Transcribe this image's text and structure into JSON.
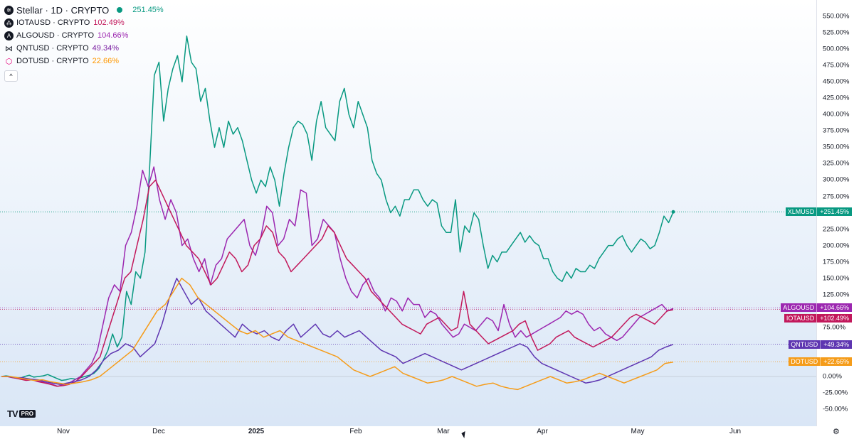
{
  "legend": {
    "main": {
      "symbol": "Stellar · 1D · CRYPTO",
      "change": "251.45%",
      "color": "#089981"
    },
    "compare": [
      {
        "symbol": "IOTAUSD · CRYPTO",
        "change": "102.49%",
        "color": "#c2185b"
      },
      {
        "symbol": "ALGOUSD · CRYPTO",
        "change": "104.66%",
        "color": "#9c27b0"
      },
      {
        "symbol": "QNTUSD · CRYPTO",
        "change": "49.34%",
        "color": "#7b1fa2"
      },
      {
        "symbol": "DOTUSD · CRYPTO",
        "change": "22.66%",
        "color": "#ff9800"
      }
    ],
    "collapse": "^"
  },
  "price_axis": {
    "ticks": [
      "550.00%",
      "525.00%",
      "500.00%",
      "475.00%",
      "450.00%",
      "425.00%",
      "400.00%",
      "375.00%",
      "350.00%",
      "325.00%",
      "300.00%",
      "275.00%",
      "250.00%",
      "225.00%",
      "200.00%",
      "175.00%",
      "150.00%",
      "125.00%",
      "75.00%",
      "0.00%",
      "-25.00%",
      "-50.00%"
    ],
    "tags": [
      {
        "symbol": "XLMUSD",
        "value": "+251.45%",
        "color": "#089981"
      },
      {
        "symbol": "ALGOUSD",
        "value": "+104.66%",
        "color": "#9c27b0"
      },
      {
        "symbol": "IOTAUSD",
        "value": "+102.49%",
        "color": "#c2185b"
      },
      {
        "symbol": "QNTUSD",
        "value": "+49.34%",
        "color": "#5e35b1"
      },
      {
        "symbol": "DOTUSD",
        "value": "+22.66%",
        "color": "#f59c1a"
      }
    ]
  },
  "time_axis": {
    "labels": [
      "Nov",
      "Dec",
      "2025",
      "Feb",
      "Mar",
      "Apr",
      "May",
      "Jun"
    ]
  },
  "branding": {
    "logo": "TV",
    "pro": "PRO"
  },
  "chart_data": {
    "type": "line",
    "title": "Stellar · 1D · CRYPTO",
    "ylabel": "",
    "ylim": [
      -58,
      550
    ],
    "x_labels": [
      "Nov",
      "Dec",
      "2025",
      "Feb",
      "Mar",
      "Apr",
      "May",
      "Jun"
    ],
    "series": [
      {
        "name": "XLMUSD",
        "color": "#089981",
        "last": 251.45,
        "values": [
          0,
          1,
          0,
          -2,
          -3,
          0,
          2,
          -1,
          0,
          1,
          3,
          0,
          -3,
          -6,
          -5,
          -3,
          -4,
          -2,
          0,
          2,
          5,
          12,
          25,
          40,
          65,
          45,
          60,
          130,
          110,
          160,
          150,
          190,
          320,
          460,
          480,
          390,
          440,
          470,
          490,
          450,
          520,
          480,
          470,
          420,
          440,
          390,
          350,
          380,
          350,
          390,
          370,
          380,
          360,
          330,
          300,
          280,
          300,
          290,
          320,
          300,
          260,
          310,
          350,
          380,
          390,
          385,
          370,
          330,
          390,
          420,
          380,
          370,
          360,
          420,
          440,
          400,
          380,
          420,
          400,
          380,
          330,
          310,
          300,
          270,
          250,
          260,
          245,
          270,
          270,
          285,
          285,
          270,
          260,
          270,
          265,
          230,
          220,
          220,
          270,
          190,
          230,
          220,
          250,
          240,
          200,
          165,
          185,
          175,
          190,
          190,
          200,
          210,
          220,
          205,
          215,
          205,
          200,
          180,
          180,
          160,
          150,
          145,
          160,
          150,
          165,
          160,
          160,
          170,
          165,
          180,
          190,
          200,
          200,
          210,
          215,
          200,
          190,
          200,
          210,
          205,
          195,
          200,
          220,
          245,
          235,
          251
        ]
      },
      {
        "name": "ALGOUSD",
        "color": "#9c27b0",
        "last": 104.66,
        "values": [
          0,
          0,
          -2,
          -3,
          -5,
          -4,
          -6,
          -8,
          -10,
          -12,
          -15,
          -12,
          -10,
          -5,
          0,
          10,
          20,
          40,
          80,
          120,
          140,
          130,
          200,
          220,
          260,
          315,
          290,
          320,
          270,
          240,
          270,
          250,
          200,
          210,
          180,
          160,
          180,
          140,
          170,
          180,
          210,
          220,
          230,
          240,
          200,
          185,
          215,
          260,
          250,
          200,
          210,
          240,
          230,
          285,
          280,
          200,
          210,
          240,
          230,
          220,
          180,
          150,
          130,
          120,
          140,
          150,
          130,
          120,
          100,
          120,
          115,
          100,
          120,
          110,
          110,
          90,
          100,
          95,
          80,
          70,
          60,
          65,
          80,
          75,
          70,
          80,
          90,
          85,
          70,
          110,
          80,
          60,
          70,
          60,
          65,
          70,
          75,
          80,
          85,
          90,
          100,
          95,
          100,
          95,
          80,
          70,
          75,
          65,
          60,
          55,
          60,
          70,
          80,
          90,
          95,
          100,
          105,
          110,
          100,
          104
        ]
      },
      {
        "name": "IOTAUSD",
        "color": "#c2185b",
        "last": 102.49,
        "values": [
          0,
          0,
          -2,
          -4,
          -6,
          -5,
          -8,
          -10,
          -12,
          -15,
          -14,
          -12,
          -8,
          0,
          10,
          20,
          30,
          60,
          90,
          120,
          150,
          160,
          200,
          240,
          290,
          300,
          280,
          260,
          240,
          220,
          200,
          190,
          180,
          160,
          140,
          150,
          170,
          190,
          180,
          160,
          170,
          200,
          210,
          230,
          220,
          190,
          180,
          160,
          170,
          180,
          190,
          200,
          210,
          230,
          220,
          200,
          180,
          170,
          160,
          150,
          130,
          120,
          110,
          100,
          90,
          80,
          75,
          70,
          65,
          80,
          85,
          90,
          80,
          70,
          75,
          130,
          80,
          70,
          60,
          50,
          55,
          60,
          65,
          70,
          80,
          85,
          60,
          40,
          45,
          50,
          60,
          65,
          70,
          60,
          55,
          50,
          45,
          50,
          55,
          60,
          70,
          80,
          90,
          95,
          90,
          85,
          80,
          90,
          100,
          102
        ]
      },
      {
        "name": "QNTUSD",
        "color": "#5e35b1",
        "last": 49.34,
        "values": [
          0,
          0,
          -2,
          -2,
          -4,
          -5,
          -8,
          -10,
          -12,
          -10,
          -8,
          -5,
          0,
          10,
          25,
          35,
          40,
          50,
          45,
          30,
          40,
          50,
          80,
          120,
          150,
          130,
          110,
          120,
          100,
          90,
          80,
          70,
          60,
          80,
          70,
          65,
          70,
          60,
          55,
          70,
          80,
          60,
          70,
          80,
          65,
          60,
          70,
          60,
          65,
          70,
          60,
          50,
          40,
          35,
          30,
          20,
          25,
          30,
          35,
          30,
          25,
          20,
          15,
          10,
          15,
          20,
          25,
          30,
          35,
          40,
          45,
          50,
          45,
          30,
          20,
          15,
          10,
          5,
          0,
          -5,
          -10,
          -8,
          -5,
          0,
          5,
          10,
          15,
          20,
          25,
          30,
          40,
          45,
          49
        ]
      },
      {
        "name": "DOTUSD",
        "color": "#f59c1a",
        "last": 22.66,
        "values": [
          0,
          0,
          -2,
          -4,
          -6,
          -5,
          -8,
          -10,
          -12,
          -10,
          -8,
          -5,
          0,
          10,
          20,
          30,
          40,
          60,
          80,
          100,
          110,
          130,
          150,
          140,
          120,
          110,
          100,
          90,
          80,
          70,
          65,
          70,
          60,
          65,
          70,
          60,
          55,
          50,
          45,
          40,
          35,
          30,
          20,
          10,
          5,
          0,
          5,
          10,
          15,
          5,
          0,
          -5,
          -10,
          -8,
          -5,
          0,
          -5,
          -10,
          -15,
          -12,
          -10,
          -15,
          -18,
          -20,
          -15,
          -10,
          -5,
          0,
          -5,
          -10,
          -8,
          -5,
          0,
          5,
          0,
          -5,
          -10,
          -5,
          0,
          5,
          10,
          20,
          22
        ]
      }
    ]
  }
}
